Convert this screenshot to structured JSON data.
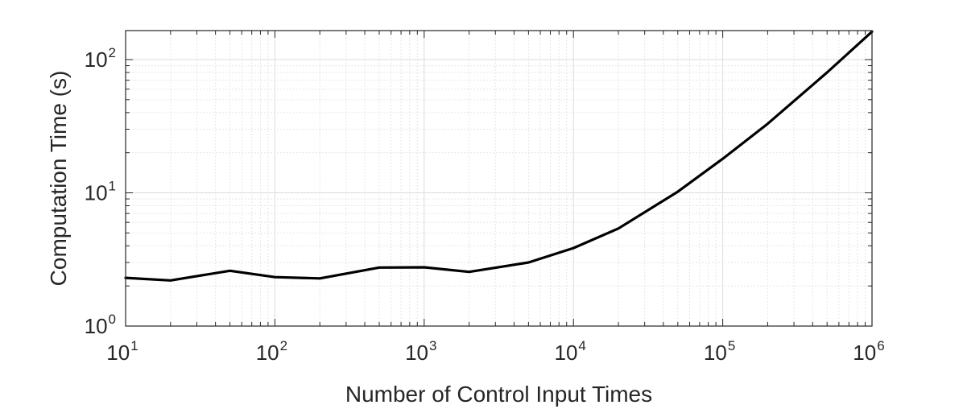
{
  "chart_data": {
    "type": "line",
    "title": "",
    "xlabel": "Number of Control Input Times",
    "ylabel": "Computation Time (s)",
    "xscale": "log",
    "yscale": "log",
    "xlim": [
      10,
      1000000
    ],
    "ylim": [
      1,
      165
    ],
    "grid": true,
    "minor_grid": true,
    "x_ticks": [
      {
        "base": "10",
        "exp": "1",
        "value": 10
      },
      {
        "base": "10",
        "exp": "2",
        "value": 100
      },
      {
        "base": "10",
        "exp": "3",
        "value": 1000
      },
      {
        "base": "10",
        "exp": "4",
        "value": 10000
      },
      {
        "base": "10",
        "exp": "5",
        "value": 100000
      },
      {
        "base": "10",
        "exp": "6",
        "value": 1000000
      }
    ],
    "y_ticks": [
      {
        "base": "10",
        "exp": "0",
        "value": 1
      },
      {
        "base": "10",
        "exp": "1",
        "value": 10
      },
      {
        "base": "10",
        "exp": "2",
        "value": 100
      }
    ],
    "series": [
      {
        "color": "#000000",
        "x": [
          10,
          20,
          50,
          100,
          200,
          500,
          1000,
          2000,
          5000,
          10000,
          20000,
          50000,
          100000,
          200000,
          500000,
          1000000
        ],
        "y": [
          2.3,
          2.2,
          2.6,
          2.33,
          2.28,
          2.75,
          2.76,
          2.55,
          3.0,
          3.85,
          5.4,
          10.2,
          18.0,
          33.0,
          80.0,
          162.0
        ]
      }
    ]
  }
}
